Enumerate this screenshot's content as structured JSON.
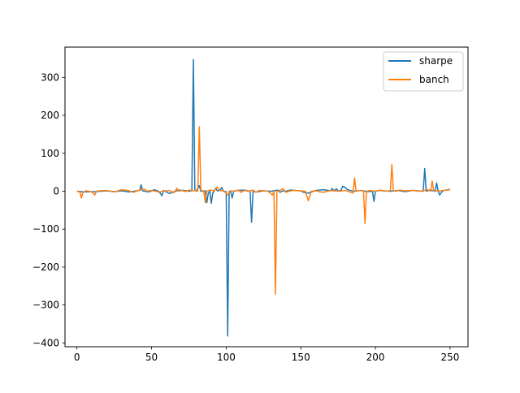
{
  "chart_data": {
    "type": "line",
    "title": "",
    "xlabel": "",
    "ylabel": "",
    "xlim": [
      -8,
      262
    ],
    "ylim": [
      -410,
      380
    ],
    "xticks": [
      0,
      50,
      100,
      150,
      200,
      250
    ],
    "yticks": [
      -400,
      -300,
      -200,
      -100,
      0,
      100,
      200,
      300
    ],
    "xtick_labels": [
      "0",
      "50",
      "100",
      "150",
      "200",
      "250"
    ],
    "ytick_labels": [
      "−400",
      "−300",
      "−200",
      "−100",
      "0",
      "100",
      "200",
      "300"
    ],
    "grid": false,
    "legend": "top-right",
    "series": [
      {
        "name": "sharpe",
        "color": "#1f77b4",
        "points": [
          [
            0,
            0
          ],
          [
            5,
            -2
          ],
          [
            12,
            -1
          ],
          [
            20,
            1
          ],
          [
            25,
            -1
          ],
          [
            30,
            1
          ],
          [
            35,
            -2
          ],
          [
            40,
            1
          ],
          [
            42,
            2
          ],
          [
            43,
            17
          ],
          [
            44,
            1
          ],
          [
            48,
            -2
          ],
          [
            52,
            4
          ],
          [
            55,
            -1
          ],
          [
            57,
            -12
          ],
          [
            58,
            2
          ],
          [
            62,
            -6
          ],
          [
            66,
            0
          ],
          [
            68,
            3
          ],
          [
            71,
            2
          ],
          [
            76,
            0
          ],
          [
            77,
            2
          ],
          [
            78,
            347
          ],
          [
            79,
            4
          ],
          [
            80,
            0
          ],
          [
            82,
            15
          ],
          [
            83,
            0
          ],
          [
            86,
            1
          ],
          [
            87,
            -30
          ],
          [
            88,
            -5
          ],
          [
            89,
            0
          ],
          [
            90,
            -32
          ],
          [
            91,
            -5
          ],
          [
            92,
            1
          ],
          [
            93,
            8
          ],
          [
            94,
            1
          ],
          [
            96,
            3
          ],
          [
            97,
            10
          ],
          [
            98,
            0
          ],
          [
            100,
            -1
          ],
          [
            101,
            -382
          ],
          [
            102,
            0
          ],
          [
            103,
            -1
          ],
          [
            104,
            -18
          ],
          [
            105,
            0
          ],
          [
            108,
            2
          ],
          [
            112,
            3
          ],
          [
            116,
            0
          ],
          [
            117,
            -82
          ],
          [
            118,
            0
          ],
          [
            120,
            -2
          ],
          [
            125,
            1
          ],
          [
            130,
            0
          ],
          [
            135,
            3
          ],
          [
            136,
            -3
          ],
          [
            138,
            1
          ],
          [
            140,
            0
          ],
          [
            143,
            3
          ],
          [
            150,
            1
          ],
          [
            152,
            -3
          ],
          [
            155,
            -5
          ],
          [
            160,
            2
          ],
          [
            165,
            4
          ],
          [
            170,
            1
          ],
          [
            171,
            7
          ],
          [
            172,
            1
          ],
          [
            174,
            6
          ],
          [
            175,
            0
          ],
          [
            177,
            3
          ],
          [
            178,
            13
          ],
          [
            179,
            12
          ],
          [
            181,
            5
          ],
          [
            183,
            2
          ],
          [
            186,
            0
          ],
          [
            190,
            2
          ],
          [
            195,
            -1
          ],
          [
            198,
            0
          ],
          [
            199,
            -27
          ],
          [
            200,
            0
          ],
          [
            203,
            2
          ],
          [
            205,
            1
          ],
          [
            210,
            0
          ],
          [
            215,
            2
          ],
          [
            220,
            -1
          ],
          [
            225,
            2
          ],
          [
            232,
            0
          ],
          [
            233,
            60
          ],
          [
            234,
            0
          ],
          [
            236,
            3
          ],
          [
            238,
            2
          ],
          [
            240,
            0
          ],
          [
            241,
            22
          ],
          [
            242,
            0
          ],
          [
            243,
            -10
          ],
          [
            245,
            1
          ],
          [
            250,
            5
          ]
        ]
      },
      {
        "name": "banch",
        "color": "#ff7f0e",
        "points": [
          [
            0,
            0
          ],
          [
            2,
            -2
          ],
          [
            3,
            -18
          ],
          [
            4,
            -3
          ],
          [
            6,
            1
          ],
          [
            10,
            -2
          ],
          [
            12,
            -10
          ],
          [
            13,
            0
          ],
          [
            15,
            1
          ],
          [
            20,
            2
          ],
          [
            25,
            -2
          ],
          [
            30,
            4
          ],
          [
            35,
            1
          ],
          [
            38,
            -3
          ],
          [
            40,
            1
          ],
          [
            45,
            6
          ],
          [
            47,
            0
          ],
          [
            50,
            2
          ],
          [
            55,
            -2
          ],
          [
            58,
            0
          ],
          [
            62,
            2
          ],
          [
            65,
            -4
          ],
          [
            67,
            8
          ],
          [
            68,
            0
          ],
          [
            70,
            2
          ],
          [
            73,
            -1
          ],
          [
            75,
            3
          ],
          [
            78,
            1
          ],
          [
            80,
            3
          ],
          [
            81,
            1
          ],
          [
            82,
            170
          ],
          [
            83,
            3
          ],
          [
            85,
            0
          ],
          [
            86,
            -30
          ],
          [
            87,
            0
          ],
          [
            89,
            3
          ],
          [
            92,
            1
          ],
          [
            94,
            11
          ],
          [
            96,
            1
          ],
          [
            98,
            2
          ],
          [
            100,
            -5
          ],
          [
            101,
            -10
          ],
          [
            102,
            -5
          ],
          [
            103,
            1
          ],
          [
            105,
            0
          ],
          [
            108,
            3
          ],
          [
            110,
            -3
          ],
          [
            112,
            2
          ],
          [
            115,
            0
          ],
          [
            118,
            3
          ],
          [
            120,
            -3
          ],
          [
            122,
            2
          ],
          [
            125,
            1
          ],
          [
            128,
            0
          ],
          [
            131,
            -10
          ],
          [
            132,
            0
          ],
          [
            133,
            -272
          ],
          [
            134,
            0
          ],
          [
            136,
            2
          ],
          [
            138,
            7
          ],
          [
            140,
            -3
          ],
          [
            142,
            0
          ],
          [
            145,
            2
          ],
          [
            150,
            1
          ],
          [
            153,
            0
          ],
          [
            155,
            -25
          ],
          [
            157,
            0
          ],
          [
            160,
            1
          ],
          [
            165,
            -3
          ],
          [
            170,
            2
          ],
          [
            175,
            0
          ],
          [
            180,
            2
          ],
          [
            185,
            -5
          ],
          [
            186,
            35
          ],
          [
            187,
            0
          ],
          [
            190,
            2
          ],
          [
            192,
            0
          ],
          [
            193,
            -85
          ],
          [
            194,
            0
          ],
          [
            196,
            2
          ],
          [
            200,
            0
          ],
          [
            203,
            3
          ],
          [
            206,
            1
          ],
          [
            208,
            0
          ],
          [
            210,
            2
          ],
          [
            211,
            70
          ],
          [
            212,
            2
          ],
          [
            214,
            0
          ],
          [
            216,
            3
          ],
          [
            220,
            1
          ],
          [
            225,
            2
          ],
          [
            230,
            0
          ],
          [
            235,
            4
          ],
          [
            237,
            0
          ],
          [
            238,
            27
          ],
          [
            239,
            2
          ],
          [
            242,
            0
          ],
          [
            245,
            2
          ],
          [
            250,
            4
          ]
        ]
      }
    ]
  }
}
